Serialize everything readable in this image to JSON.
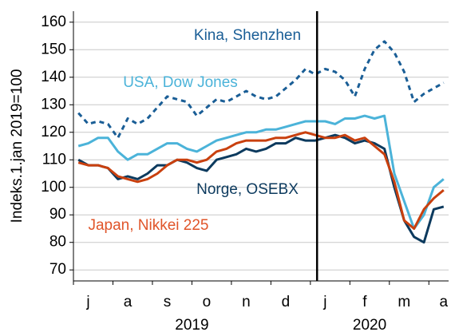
{
  "chart_data": {
    "type": "line",
    "y_label": "Indeks.1.jan 2019=100",
    "categories": [
      null,
      "j",
      null,
      null,
      null,
      "a",
      null,
      null,
      null,
      "s",
      null,
      null,
      null,
      "o",
      null,
      null,
      null,
      "n",
      null,
      null,
      null,
      "d",
      null,
      null,
      null,
      "j",
      null,
      null,
      null,
      "f",
      null,
      null,
      null,
      "m",
      null,
      null,
      null,
      "a"
    ],
    "years": [
      "2019",
      "2020"
    ],
    "series": [
      {
        "name": "Kina, Shenzhen",
        "color": "#1a5e96",
        "dashed": true,
        "values": [
          127,
          123,
          124,
          123,
          118,
          125,
          123,
          125,
          129,
          133,
          132,
          131,
          126,
          129,
          132,
          131,
          133,
          135,
          133,
          132,
          133,
          136,
          139,
          143,
          141,
          143,
          142,
          139,
          133,
          143,
          150,
          153,
          149,
          142,
          131,
          134,
          136,
          138
        ]
      },
      {
        "name": "USA, Dow Jones",
        "color": "#4bb3d9",
        "dashed": false,
        "values": [
          115,
          116,
          118,
          118,
          113,
          110,
          112,
          112,
          114,
          116,
          116,
          114,
          113,
          115,
          117,
          118,
          119,
          120,
          120,
          121,
          121,
          122,
          123,
          124,
          124,
          124,
          123,
          125,
          125,
          126,
          125,
          126,
          105,
          95,
          85,
          90,
          100,
          103
        ]
      },
      {
        "name": "Norge, OSEBX",
        "color": "#0c3a5e",
        "dashed": false,
        "values": [
          110,
          108,
          108,
          107,
          103,
          104,
          103,
          105,
          108,
          108,
          110,
          109,
          107,
          106,
          110,
          111,
          112,
          114,
          113,
          114,
          116,
          116,
          118,
          117,
          117,
          118,
          119,
          118,
          116,
          117,
          116,
          114,
          100,
          88,
          82,
          80,
          92,
          93
        ]
      },
      {
        "name": "Japan, Nikkei 225",
        "color": "#c9400e",
        "dashed": false,
        "values": [
          109,
          108,
          108,
          107,
          104,
          103,
          102,
          103,
          105,
          108,
          110,
          110,
          109,
          110,
          113,
          114,
          116,
          117,
          117,
          117,
          118,
          118,
          119,
          120,
          119,
          118,
          118,
          119,
          117,
          118,
          115,
          112,
          102,
          88,
          85,
          92,
          96,
          99
        ]
      }
    ],
    "ylim": [
      66,
      164
    ],
    "yticks": [
      70,
      80,
      90,
      100,
      110,
      120,
      130,
      140,
      150,
      160
    ],
    "grid": true
  }
}
